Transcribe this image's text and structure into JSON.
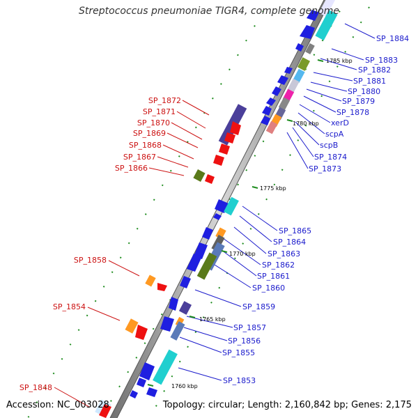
{
  "title": "Streptococcus pneumoniae TIGR4, complete genome",
  "footer": {
    "accession": "Accession: NC_003028",
    "summary": "Topology: circular; Length: 2,160,842 bp; Genes: 2,175"
  },
  "colors": {
    "forward_label": "#1a1acc",
    "reverse_label": "#cc1111",
    "backbone": "#a8a8a8",
    "tick": "#1e8c1e"
  },
  "scale_labels": [
    "1785 kbp",
    "1780 kbp",
    "1775 kbp",
    "1770 kbp",
    "1765 kbp",
    "1760 kbp"
  ],
  "forward_genes": [
    "SP_1884",
    "SP_1883",
    "SP_1882",
    "SP_1881",
    "SP_1880",
    "SP_1879",
    "SP_1878",
    "xerD",
    "scpA",
    "scpB",
    "SP_1874",
    "SP_1873",
    "SP_1865",
    "SP_1864",
    "SP_1863",
    "SP_1862",
    "SP_1861",
    "SP_1860",
    "SP_1859",
    "SP_1857",
    "SP_1856",
    "SP_1855",
    "SP_1853"
  ],
  "reverse_genes": [
    "SP_1872",
    "SP_1871",
    "SP_1870",
    "SP_1869",
    "SP_1868",
    "SP_1867",
    "SP_1866",
    "SP_1858",
    "SP_1854",
    "SP_1848"
  ]
}
